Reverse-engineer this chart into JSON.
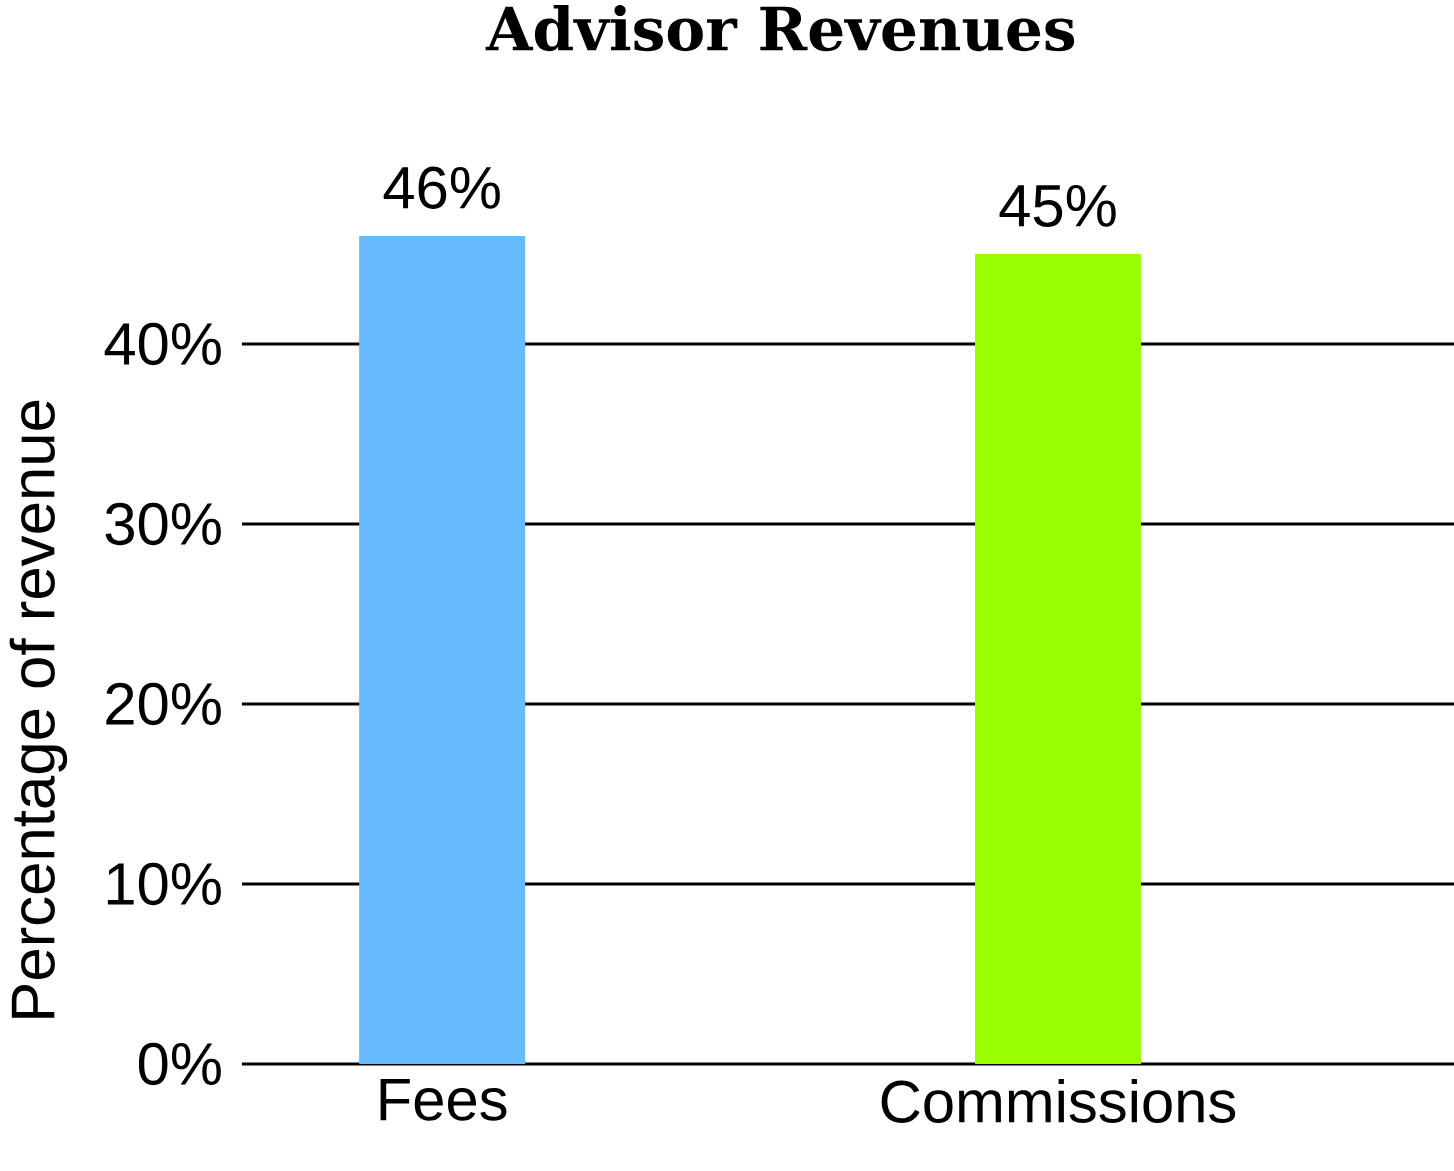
{
  "chart_data": {
    "type": "bar",
    "title": "Advisor Revenues",
    "ylabel": "Percentage of revenue",
    "categories": [
      "Fees",
      "Commissions"
    ],
    "values": [
      46,
      45
    ],
    "colors": [
      "#66bbff",
      "#99ff00"
    ],
    "value_labels": [
      "46%",
      "45%"
    ],
    "ylim": [
      0,
      46
    ],
    "yticks": [
      {
        "value": 0,
        "label": "0%"
      },
      {
        "value": 10,
        "label": "10%"
      },
      {
        "value": 20,
        "label": "20%"
      },
      {
        "value": 30,
        "label": "30%"
      },
      {
        "value": 40,
        "label": "40%"
      }
    ],
    "grid": "y"
  }
}
